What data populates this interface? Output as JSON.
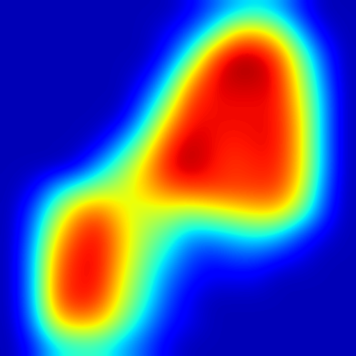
{
  "chart_data": {
    "type": "heatmap",
    "tick_labels": false,
    "grid": false,
    "color_range": [
      0,
      1
    ],
    "cells": [
      [
        0.05,
        0.05,
        0.05,
        0.05,
        0.05,
        0.05,
        0.05,
        0.05,
        0.1,
        0.2,
        0.3,
        0.35,
        0.3,
        0.15,
        0.05,
        0.05
      ],
      [
        0.05,
        0.05,
        0.05,
        0.05,
        0.05,
        0.05,
        0.05,
        0.1,
        0.2,
        0.4,
        0.7,
        0.75,
        0.6,
        0.3,
        0.1,
        0.05
      ],
      [
        0.05,
        0.05,
        0.05,
        0.05,
        0.05,
        0.05,
        0.05,
        0.15,
        0.4,
        0.8,
        0.95,
        0.95,
        0.85,
        0.5,
        0.2,
        0.05
      ],
      [
        0.05,
        0.05,
        0.05,
        0.05,
        0.05,
        0.05,
        0.1,
        0.3,
        0.7,
        0.9,
        0.95,
        0.95,
        0.9,
        0.6,
        0.25,
        0.05
      ],
      [
        0.05,
        0.05,
        0.05,
        0.05,
        0.05,
        0.05,
        0.2,
        0.5,
        0.85,
        0.9,
        0.9,
        0.9,
        0.9,
        0.65,
        0.3,
        0.05
      ],
      [
        0.05,
        0.05,
        0.05,
        0.05,
        0.05,
        0.1,
        0.35,
        0.7,
        0.9,
        0.9,
        0.9,
        0.9,
        0.9,
        0.7,
        0.3,
        0.05
      ],
      [
        0.05,
        0.05,
        0.05,
        0.05,
        0.1,
        0.3,
        0.55,
        0.85,
        0.95,
        0.9,
        0.88,
        0.9,
        0.9,
        0.7,
        0.3,
        0.05
      ],
      [
        0.05,
        0.05,
        0.05,
        0.1,
        0.3,
        0.5,
        0.7,
        0.9,
        0.95,
        0.9,
        0.85,
        0.88,
        0.88,
        0.7,
        0.3,
        0.05
      ],
      [
        0.05,
        0.1,
        0.3,
        0.45,
        0.55,
        0.6,
        0.7,
        0.8,
        0.85,
        0.85,
        0.85,
        0.85,
        0.85,
        0.65,
        0.25,
        0.05
      ],
      [
        0.05,
        0.2,
        0.5,
        0.75,
        0.8,
        0.65,
        0.6,
        0.6,
        0.55,
        0.6,
        0.65,
        0.7,
        0.7,
        0.5,
        0.2,
        0.05
      ],
      [
        0.05,
        0.25,
        0.65,
        0.85,
        0.9,
        0.7,
        0.55,
        0.45,
        0.3,
        0.3,
        0.35,
        0.4,
        0.35,
        0.2,
        0.1,
        0.05
      ],
      [
        0.05,
        0.3,
        0.75,
        0.9,
        0.9,
        0.7,
        0.5,
        0.35,
        0.2,
        0.15,
        0.2,
        0.2,
        0.15,
        0.1,
        0.05,
        0.05
      ],
      [
        0.05,
        0.3,
        0.8,
        0.9,
        0.9,
        0.65,
        0.45,
        0.25,
        0.15,
        0.1,
        0.1,
        0.1,
        0.05,
        0.05,
        0.05,
        0.05
      ],
      [
        0.05,
        0.3,
        0.8,
        0.9,
        0.85,
        0.6,
        0.4,
        0.2,
        0.1,
        0.05,
        0.05,
        0.05,
        0.05,
        0.05,
        0.05,
        0.05
      ],
      [
        0.05,
        0.25,
        0.65,
        0.75,
        0.7,
        0.5,
        0.3,
        0.15,
        0.1,
        0.05,
        0.05,
        0.05,
        0.05,
        0.05,
        0.05,
        0.05
      ],
      [
        0.05,
        0.15,
        0.35,
        0.4,
        0.4,
        0.3,
        0.2,
        0.1,
        0.05,
        0.05,
        0.05,
        0.05,
        0.05,
        0.05,
        0.05,
        0.05
      ]
    ]
  }
}
